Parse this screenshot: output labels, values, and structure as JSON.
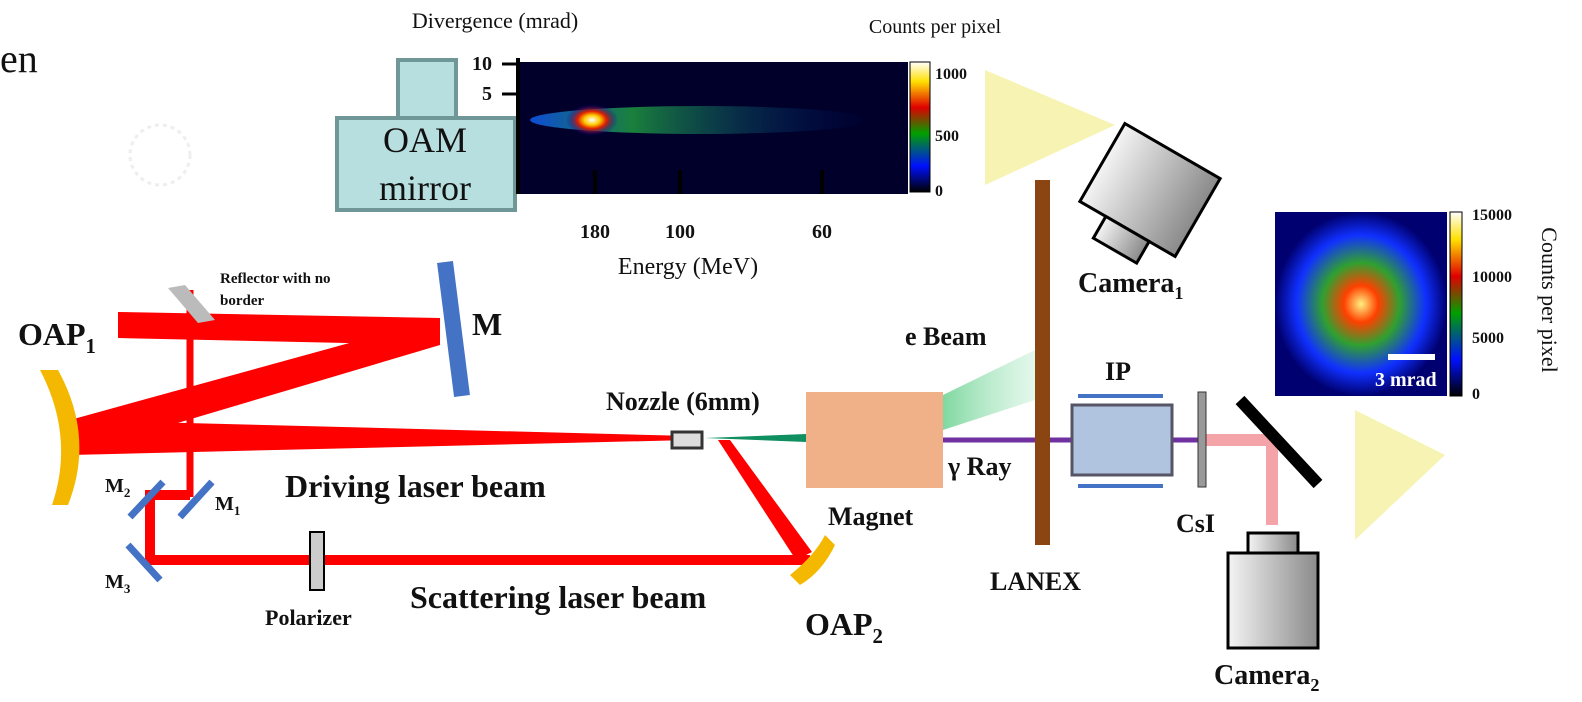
{
  "header": {
    "partial_title": "en"
  },
  "spectrum": {
    "y_label": "Divergence (mrad)",
    "y_ticks": [
      10,
      5
    ],
    "x_ticks": [
      180,
      100,
      60
    ],
    "x_label": "Energy (MeV)",
    "colorbar_label": "Counts per pixel",
    "colorbar_ticks": [
      1000,
      500,
      0
    ]
  },
  "oam_mirror": {
    "lines": [
      "OAM",
      "mirror"
    ]
  },
  "reflector": {
    "lines": [
      "Reflector with no",
      "border"
    ]
  },
  "labels": {
    "oap1": {
      "text": "OAP",
      "sub": "1"
    },
    "m": "M",
    "nozzle": "Nozzle (6mm)",
    "e_beam": "e Beam",
    "camera1": {
      "text": "Camera",
      "sub": "1"
    },
    "ip": "IP",
    "driving": "Driving laser beam",
    "m2": {
      "text": "M",
      "sub": "2"
    },
    "m1": {
      "text": "M",
      "sub": "1"
    },
    "m3": {
      "text": "M",
      "sub": "3"
    },
    "magnet": "Magnet",
    "gamma": "γ Ray",
    "csi": "CsI",
    "scattering": "Scattering laser beam",
    "polarizer": "Polarizer",
    "oap2": {
      "text": "OAP",
      "sub": "2"
    },
    "lanex": "LANEX",
    "camera2": {
      "text": "Camera",
      "sub": "2"
    }
  },
  "profile": {
    "scale_label": "3 mrad",
    "colorbar_ticks": [
      15000,
      10000,
      5000,
      0
    ],
    "colorbar_label": "Counts per pixel"
  }
}
